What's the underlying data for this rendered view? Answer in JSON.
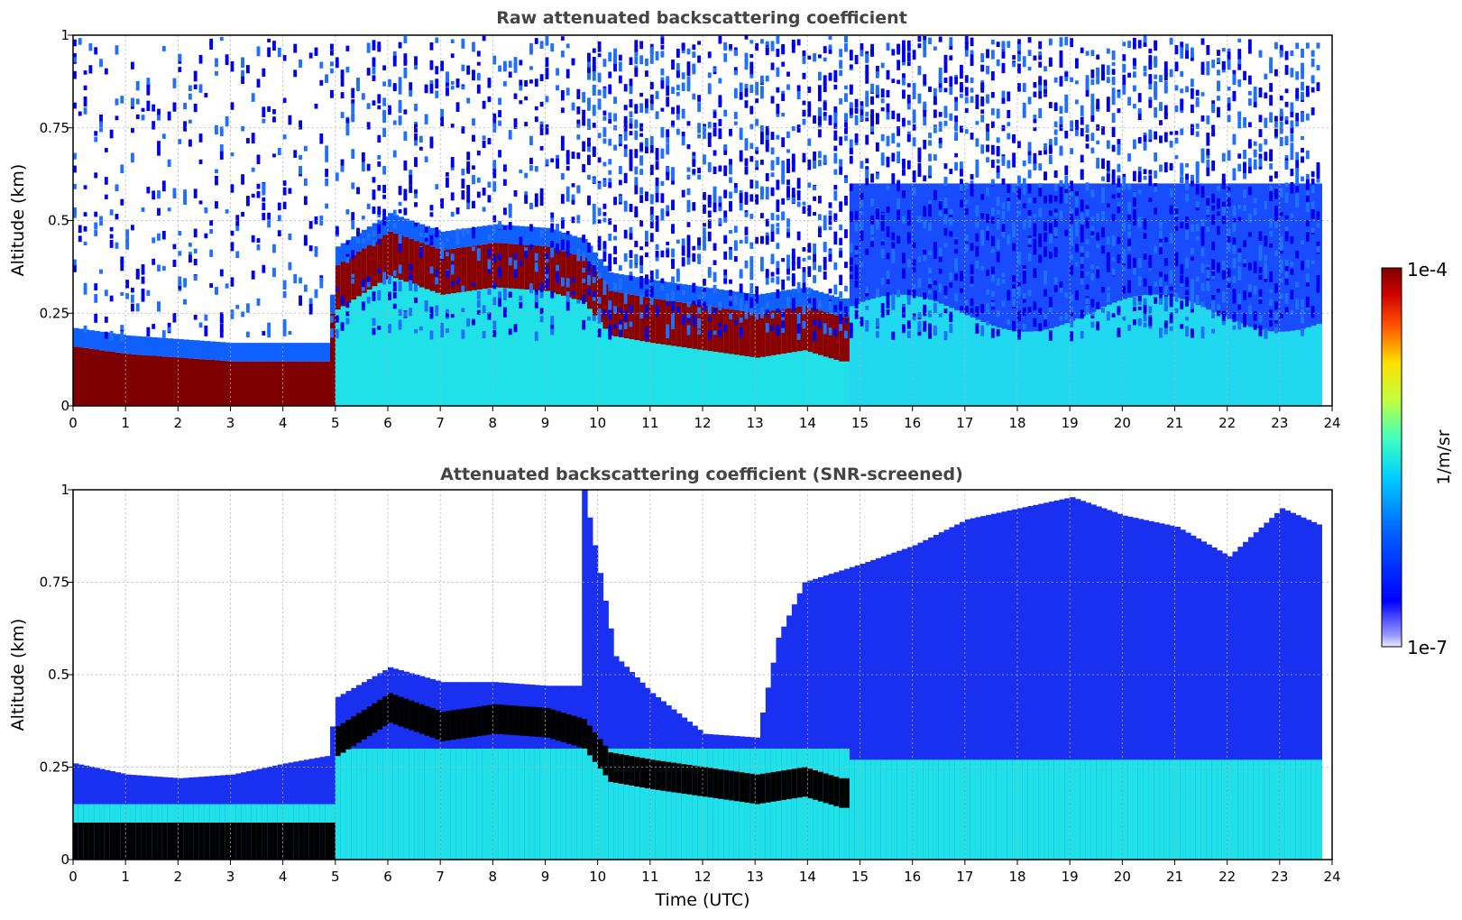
{
  "chart_data": [
    {
      "type": "heatmap",
      "title": "Raw attenuated backscattering coefficient",
      "xlabel": "",
      "ylabel": "Altitude (km)",
      "xlim": [
        0,
        24
      ],
      "ylim": [
        0,
        1
      ],
      "xticks": [
        "0",
        "1",
        "2",
        "3",
        "4",
        "5",
        "6",
        "7",
        "8",
        "9",
        "10",
        "11",
        "12",
        "13",
        "14",
        "15",
        "16",
        "17",
        "18",
        "19",
        "20",
        "21",
        "22",
        "23",
        "24"
      ],
      "yticks": [
        "0",
        "0.25",
        "0.5",
        "0.75",
        "1"
      ],
      "grid": true,
      "data_end_time": 23.8,
      "layer_top": [
        {
          "t": 0.0,
          "km": 0.16
        },
        {
          "t": 1.0,
          "km": 0.14
        },
        {
          "t": 2.0,
          "km": 0.13
        },
        {
          "t": 3.0,
          "km": 0.12
        },
        {
          "t": 4.0,
          "km": 0.12
        },
        {
          "t": 4.8,
          "km": 0.12
        },
        {
          "t": 5.0,
          "km": 0.38
        },
        {
          "t": 6.0,
          "km": 0.47
        },
        {
          "t": 7.0,
          "km": 0.42
        },
        {
          "t": 8.0,
          "km": 0.44
        },
        {
          "t": 9.0,
          "km": 0.43
        },
        {
          "t": 9.7,
          "km": 0.4
        },
        {
          "t": 10.2,
          "km": 0.31
        },
        {
          "t": 11.0,
          "km": 0.29
        },
        {
          "t": 12.0,
          "km": 0.27
        },
        {
          "t": 13.0,
          "km": 0.25
        },
        {
          "t": 13.9,
          "km": 0.27
        },
        {
          "t": 14.6,
          "km": 0.24
        }
      ]
    },
    {
      "type": "heatmap",
      "title": "Attenuated backscattering coefficient (SNR-screened)",
      "xlabel": "Time (UTC)",
      "ylabel": "Altitude (km)",
      "xlim": [
        0,
        24
      ],
      "ylim": [
        0,
        1
      ],
      "xticks": [
        "0",
        "1",
        "2",
        "3",
        "4",
        "5",
        "6",
        "7",
        "8",
        "9",
        "10",
        "11",
        "12",
        "13",
        "14",
        "15",
        "16",
        "17",
        "18",
        "19",
        "20",
        "21",
        "22",
        "23",
        "24"
      ],
      "yticks": [
        "0",
        "0.25",
        "0.5",
        "0.75",
        "1"
      ],
      "grid": true,
      "data_end_time": 23.8,
      "signal_top": [
        {
          "t": 0.0,
          "km": 0.26
        },
        {
          "t": 1.0,
          "km": 0.23
        },
        {
          "t": 2.0,
          "km": 0.22
        },
        {
          "t": 3.0,
          "km": 0.23
        },
        {
          "t": 4.0,
          "km": 0.26
        },
        {
          "t": 4.8,
          "km": 0.28
        },
        {
          "t": 5.0,
          "km": 0.44
        },
        {
          "t": 6.0,
          "km": 0.52
        },
        {
          "t": 7.0,
          "km": 0.48
        },
        {
          "t": 8.0,
          "km": 0.48
        },
        {
          "t": 9.0,
          "km": 0.47
        },
        {
          "t": 9.6,
          "km": 0.47
        },
        {
          "t": 9.7,
          "km": 1.0
        },
        {
          "t": 10.3,
          "km": 0.55
        },
        {
          "t": 11.0,
          "km": 0.45
        },
        {
          "t": 12.0,
          "km": 0.34
        },
        {
          "t": 13.0,
          "km": 0.33
        },
        {
          "t": 13.4,
          "km": 0.6
        },
        {
          "t": 13.9,
          "km": 0.75
        },
        {
          "t": 15.0,
          "km": 0.8
        },
        {
          "t": 16.0,
          "km": 0.85
        },
        {
          "t": 17.0,
          "km": 0.92
        },
        {
          "t": 18.0,
          "km": 0.95
        },
        {
          "t": 19.0,
          "km": 0.98
        },
        {
          "t": 20.0,
          "km": 0.93
        },
        {
          "t": 21.0,
          "km": 0.9
        },
        {
          "t": 22.0,
          "km": 0.82
        },
        {
          "t": 23.0,
          "km": 0.95
        },
        {
          "t": 23.8,
          "km": 0.9
        }
      ]
    }
  ],
  "colorbar": {
    "max_label": "1e-4",
    "min_label": "1e-7",
    "unit_label": "1/m/sr",
    "colormap": "jet"
  }
}
